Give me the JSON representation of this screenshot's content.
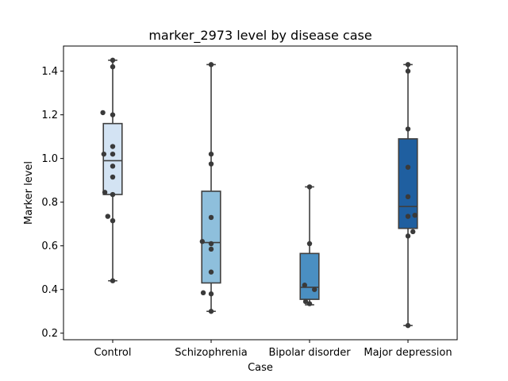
{
  "chart_data": {
    "type": "box",
    "title": "marker_2973 level by disease case",
    "xlabel": "Case",
    "ylabel": "Marker level",
    "ylim": [
      0.17,
      1.515
    ],
    "yticks": [
      0.2,
      0.4,
      0.6,
      0.8,
      1.0,
      1.2,
      1.4
    ],
    "ytick_labels": [
      "0.2",
      "0.4",
      "0.6",
      "0.8",
      "1.0",
      "1.2",
      "1.4"
    ],
    "grid": false,
    "categories": [
      "Control",
      "Schizophrenia",
      "Bipolar disorder",
      "Major depression"
    ],
    "boxes": [
      {
        "category": "Control",
        "whisker_low": 0.44,
        "q1": 0.835,
        "median": 0.99,
        "q3": 1.16,
        "whisker_high": 1.45,
        "color": "#d3e3f3"
      },
      {
        "category": "Schizophrenia",
        "whisker_low": 0.3,
        "q1": 0.43,
        "median": 0.615,
        "q3": 0.85,
        "whisker_high": 1.43,
        "color": "#8ebfdc"
      },
      {
        "category": "Bipolar disorder",
        "whisker_low": 0.33,
        "q1": 0.355,
        "median": 0.41,
        "q3": 0.565,
        "whisker_high": 0.87,
        "color": "#4a8fc2"
      },
      {
        "category": "Major depression",
        "whisker_low": 0.235,
        "q1": 0.68,
        "median": 0.78,
        "q3": 1.09,
        "whisker_high": 1.43,
        "color": "#1f5fa0"
      }
    ],
    "points": [
      {
        "category": "Control",
        "values": [
          1.45,
          1.42,
          1.21,
          1.2,
          1.055,
          1.02,
          1.02,
          0.965,
          0.915,
          0.845,
          0.835,
          0.735,
          0.715,
          0.44
        ],
        "offsets": [
          0,
          0,
          -0.1,
          0,
          0,
          -0.09,
          0,
          0,
          0,
          -0.08,
          0,
          -0.05,
          0,
          0
        ]
      },
      {
        "category": "Schizophrenia",
        "values": [
          1.43,
          1.02,
          0.975,
          0.73,
          0.62,
          0.61,
          0.585,
          0.48,
          0.385,
          0.38,
          0.3
        ],
        "offsets": [
          0,
          0,
          0,
          0,
          -0.09,
          0,
          0,
          0,
          -0.08,
          0,
          0
        ]
      },
      {
        "category": "Bipolar disorder",
        "values": [
          0.87,
          0.61,
          0.42,
          0.4,
          0.345,
          0.335
        ],
        "offsets": [
          0,
          0,
          -0.05,
          0.05,
          -0.04,
          0
        ]
      },
      {
        "category": "Major depression",
        "values": [
          1.43,
          1.4,
          1.135,
          0.96,
          0.825,
          0.74,
          0.735,
          0.665,
          0.645,
          0.235
        ],
        "offsets": [
          0,
          0,
          0,
          0,
          0,
          0.07,
          0,
          0.05,
          0,
          0
        ]
      }
    ]
  }
}
